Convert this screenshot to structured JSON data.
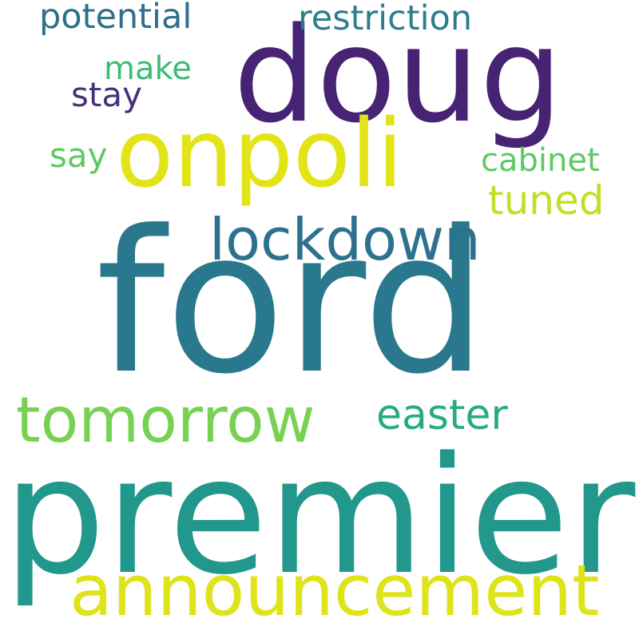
{
  "words": [
    {
      "text": "ford",
      "color": "#2a788e"
    },
    {
      "text": "premier",
      "color": "#22978b"
    },
    {
      "text": "doug",
      "color": "#472374"
    },
    {
      "text": "onpoli",
      "color": "#e2e418"
    },
    {
      "text": "announcement",
      "color": "#dfe31a"
    },
    {
      "text": "tomorrow",
      "color": "#78d152"
    },
    {
      "text": "lockdown",
      "color": "#2c718e"
    },
    {
      "text": "easter",
      "color": "#27ac81"
    },
    {
      "text": "potential",
      "color": "#2e6e8e"
    },
    {
      "text": "restriction",
      "color": "#2c7d8e"
    },
    {
      "text": "tuned",
      "color": "#c2df23"
    },
    {
      "text": "cabinet",
      "color": "#5ec962"
    },
    {
      "text": "make",
      "color": "#3dbc74"
    },
    {
      "text": "stay",
      "color": "#46307e"
    },
    {
      "text": "say",
      "color": "#5ec962"
    }
  ]
}
